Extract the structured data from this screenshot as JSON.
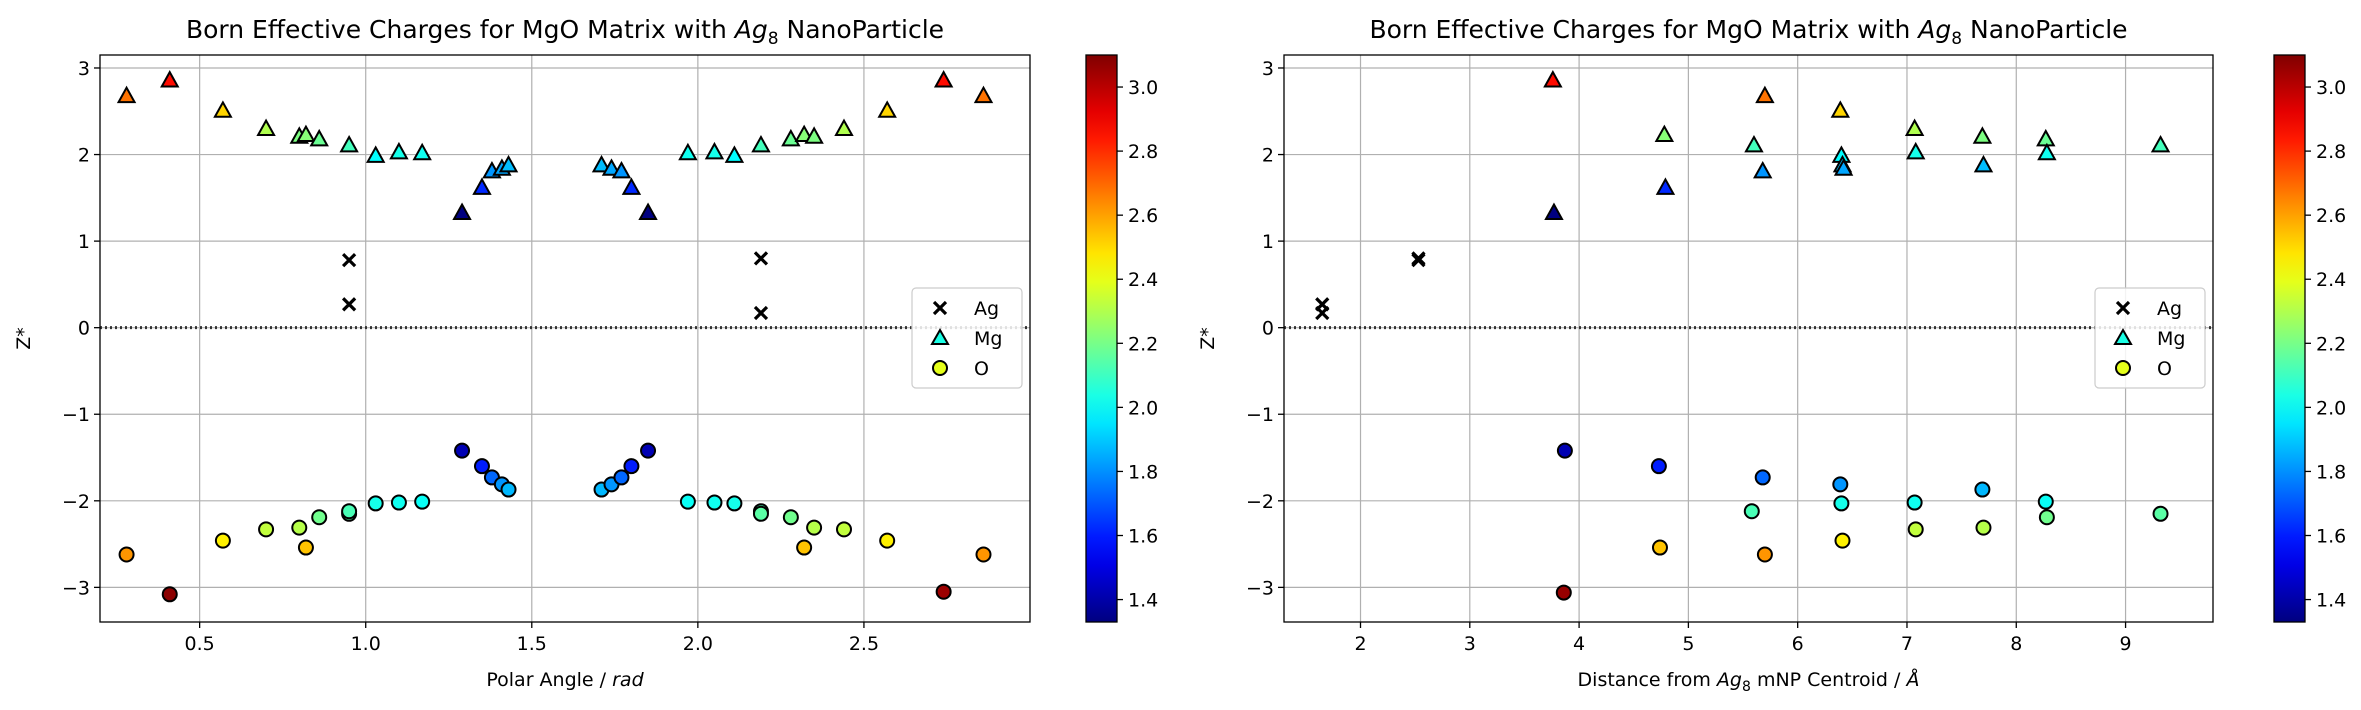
{
  "chart_data": [
    {
      "type": "scatter",
      "title": "Born Effective Charges for MgO Matrix with Ag8 NanoParticle",
      "title_parts": {
        "prefix": "Born Effective Charges for MgO Matrix with ",
        "italic": "Ag",
        "sub": "8",
        "suffix": " NanoParticle"
      },
      "xlabel": "Polar Angle / rad",
      "xlabel_parts": {
        "prefix": "Polar Angle / ",
        "italic": "rad"
      },
      "ylabel": "Z*",
      "xlim": [
        0.2,
        3.0
      ],
      "ylim": [
        -3.4,
        3.15
      ],
      "xticks": [
        "0.5",
        "1.0",
        "1.5",
        "2.0",
        "2.5"
      ],
      "xtick_values": [
        0.5,
        1.0,
        1.5,
        2.0,
        2.5
      ],
      "yticks": [
        "−3",
        "−2",
        "−1",
        "0",
        "1",
        "2",
        "3"
      ],
      "ytick_values": [
        -3,
        -2,
        -1,
        0,
        1,
        2,
        3
      ],
      "grid": true,
      "legend_position": "center-right",
      "reference_line": {
        "y": 0,
        "style": "dotted"
      },
      "colormap": "jet",
      "color_range": [
        1.33,
        3.1
      ],
      "colorbar_ticks": [
        "1.4",
        "1.6",
        "1.8",
        "2.0",
        "2.2",
        "2.4",
        "2.6",
        "2.8",
        "3.0"
      ],
      "colorbar_tick_values": [
        1.4,
        1.6,
        1.8,
        2.0,
        2.2,
        2.4,
        2.6,
        2.8,
        3.0
      ],
      "series": [
        {
          "name": "Ag",
          "marker": "x",
          "x": [
            0.95,
            0.95,
            2.19,
            2.19
          ],
          "y": [
            0.78,
            0.27,
            0.8,
            0.17
          ]
        },
        {
          "name": "Mg",
          "marker": "triangle",
          "x": [
            0.28,
            0.41,
            0.57,
            0.7,
            0.8,
            0.82,
            0.86,
            0.95,
            1.03,
            1.1,
            1.17,
            1.29,
            1.35,
            1.38,
            1.41,
            1.43,
            1.71,
            1.74,
            1.77,
            1.8,
            1.85,
            1.97,
            2.05,
            2.11,
            2.19,
            2.28,
            2.32,
            2.35,
            2.44,
            2.57,
            2.74,
            2.86
          ],
          "y": [
            2.68,
            2.86,
            2.51,
            2.3,
            2.21,
            2.23,
            2.18,
            2.11,
            1.99,
            2.03,
            2.02,
            1.33,
            1.62,
            1.81,
            1.84,
            1.88,
            1.88,
            1.84,
            1.81,
            1.62,
            1.33,
            2.02,
            2.03,
            1.99,
            2.11,
            2.18,
            2.23,
            2.21,
            2.3,
            2.51,
            2.86,
            2.68
          ]
        },
        {
          "name": "O",
          "marker": "circle",
          "x": [
            0.28,
            0.41,
            0.57,
            0.7,
            0.8,
            0.82,
            0.86,
            0.95,
            0.95,
            1.03,
            1.1,
            1.17,
            1.29,
            1.35,
            1.38,
            1.41,
            1.43,
            1.71,
            1.74,
            1.77,
            1.8,
            1.85,
            1.97,
            2.05,
            2.11,
            2.19,
            2.19,
            2.28,
            2.32,
            2.35,
            2.44,
            2.57,
            2.74,
            2.86
          ],
          "y": [
            -2.62,
            -3.08,
            -2.46,
            -2.33,
            -2.31,
            -2.54,
            -2.19,
            -2.15,
            -2.12,
            -2.03,
            -2.02,
            -2.01,
            -1.42,
            -1.6,
            -1.73,
            -1.81,
            -1.87,
            -1.87,
            -1.81,
            -1.73,
            -1.6,
            -1.42,
            -2.01,
            -2.02,
            -2.03,
            -2.12,
            -2.15,
            -2.19,
            -2.54,
            -2.31,
            -2.33,
            -2.46,
            -3.05,
            -2.62
          ]
        }
      ]
    },
    {
      "type": "scatter",
      "title": "Born Effective Charges for MgO Matrix with Ag8 NanoParticle",
      "title_parts": {
        "prefix": "Born Effective Charges for MgO Matrix with ",
        "italic": "Ag",
        "sub": "8",
        "suffix": " NanoParticle"
      },
      "xlabel": "Distance from Ag8 mNP Centroid / Å",
      "xlabel_parts": {
        "prefix": "Distance from ",
        "italic": "Ag",
        "sub": "8",
        "mid": " mNP Centroid / ",
        "italic2": "Å"
      },
      "ylabel": "Z*",
      "xlim": [
        1.3,
        9.8
      ],
      "ylim": [
        -3.4,
        3.15
      ],
      "xticks": [
        "2",
        "3",
        "4",
        "5",
        "6",
        "7",
        "8",
        "9"
      ],
      "xtick_values": [
        2,
        3,
        4,
        5,
        6,
        7,
        8,
        9
      ],
      "yticks": [
        "−3",
        "−2",
        "−1",
        "0",
        "1",
        "2",
        "3"
      ],
      "ytick_values": [
        -3,
        -2,
        -1,
        0,
        1,
        2,
        3
      ],
      "grid": true,
      "legend_position": "center-right",
      "reference_line": {
        "y": 0,
        "style": "dotted"
      },
      "colormap": "jet",
      "color_range": [
        1.33,
        3.1
      ],
      "colorbar_ticks": [
        "1.4",
        "1.6",
        "1.8",
        "2.0",
        "2.2",
        "2.4",
        "2.6",
        "2.8",
        "3.0"
      ],
      "colorbar_tick_values": [
        1.4,
        1.6,
        1.8,
        2.0,
        2.2,
        2.4,
        2.6,
        2.8,
        3.0
      ],
      "series": [
        {
          "name": "Ag",
          "marker": "x",
          "x": [
            1.65,
            1.65,
            2.53,
            2.53
          ],
          "y": [
            0.27,
            0.17,
            0.78,
            0.8
          ]
        },
        {
          "name": "Mg",
          "marker": "triangle",
          "x": [
            3.76,
            3.77,
            4.78,
            4.79,
            5.6,
            5.68,
            5.7,
            6.39,
            6.4,
            6.41,
            6.42,
            7.07,
            7.08,
            7.69,
            7.7,
            8.27,
            8.28,
            9.32
          ],
          "y": [
            2.86,
            1.33,
            2.23,
            1.62,
            2.11,
            1.81,
            2.68,
            2.51,
            1.99,
            1.88,
            1.84,
            2.3,
            2.03,
            2.21,
            1.88,
            2.18,
            2.02,
            2.11
          ]
        },
        {
          "name": "O",
          "marker": "circle",
          "x": [
            3.86,
            3.87,
            4.73,
            4.74,
            5.58,
            5.68,
            5.7,
            6.39,
            6.4,
            6.41,
            7.07,
            7.08,
            7.69,
            7.7,
            8.27,
            8.28,
            9.32
          ],
          "y": [
            -3.06,
            -1.42,
            -1.6,
            -2.54,
            -2.12,
            -1.73,
            -2.62,
            -1.81,
            -2.03,
            -2.46,
            -2.02,
            -2.33,
            -1.87,
            -2.31,
            -2.01,
            -2.19,
            -2.15
          ]
        }
      ]
    }
  ]
}
